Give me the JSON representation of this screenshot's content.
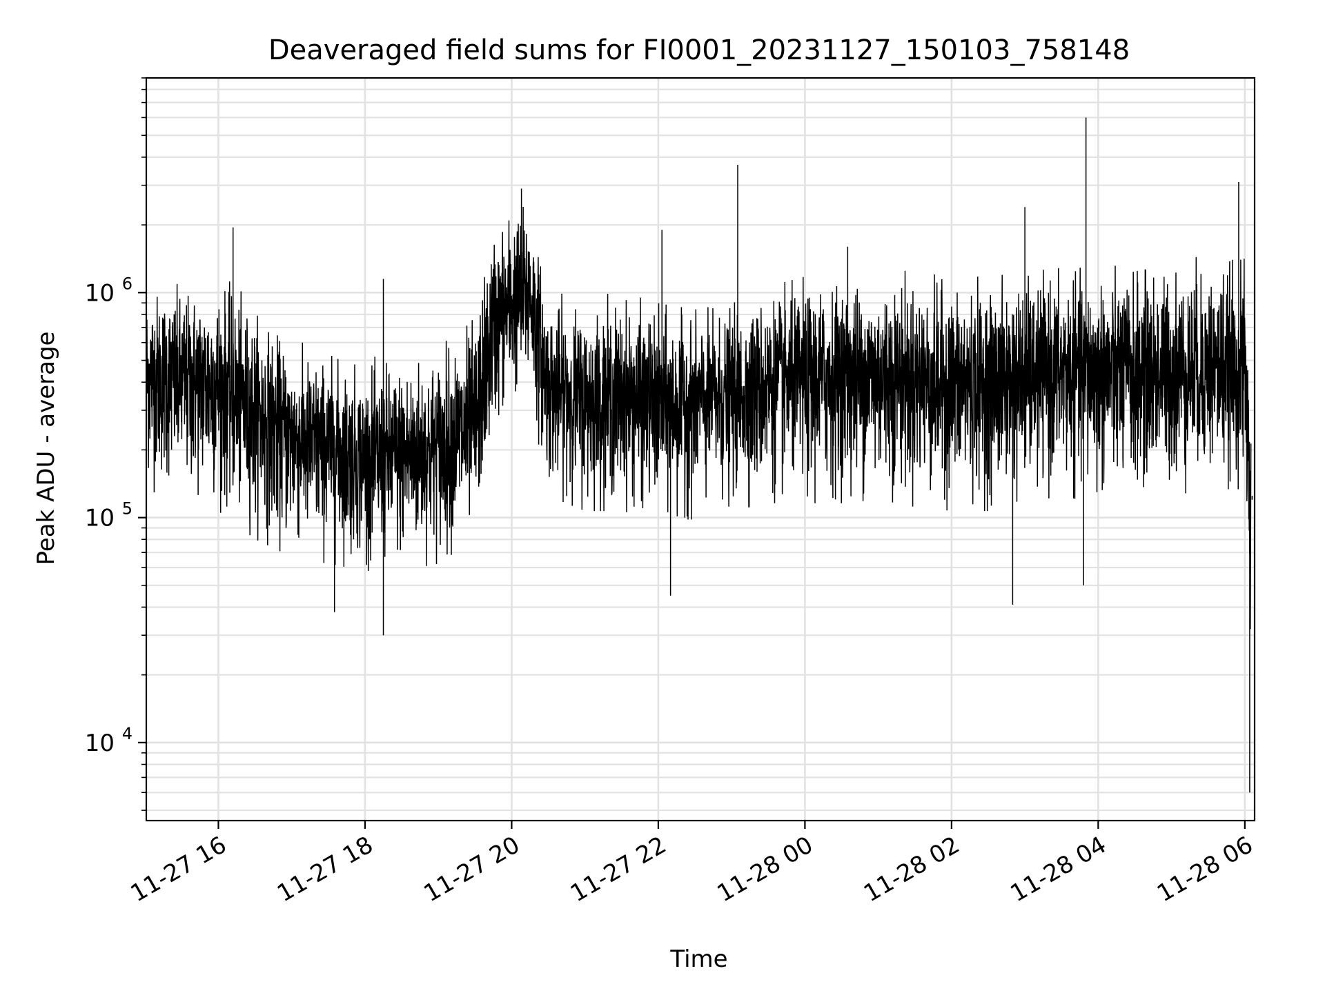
{
  "chart_data": {
    "type": "line",
    "title": "Deaveraged field sums for FI0001_20231127_150103_758148",
    "xlabel": "Time",
    "ylabel": "Peak ADU - average",
    "x_range": [
      "2023-11-27 15:01",
      "2023-11-28 06:08"
    ],
    "ylim": [
      4500,
      9000000
    ],
    "yscale": "log",
    "grid": true,
    "legend": "none",
    "line_color": "#000000",
    "x_ticks": [
      {
        "value": "2023-11-27 16:00",
        "label": "11-27 16"
      },
      {
        "value": "2023-11-27 18:00",
        "label": "11-27 18"
      },
      {
        "value": "2023-11-27 20:00",
        "label": "11-27 20"
      },
      {
        "value": "2023-11-27 22:00",
        "label": "11-27 22"
      },
      {
        "value": "2023-11-28 00:00",
        "label": "11-28 00"
      },
      {
        "value": "2023-11-28 02:00",
        "label": "11-28 02"
      },
      {
        "value": "2023-11-28 04:00",
        "label": "11-28 04"
      },
      {
        "value": "2023-11-28 06:00",
        "label": "11-28 06"
      }
    ],
    "y_ticks": [
      {
        "value": 10000,
        "base": "10",
        "exp": "4"
      },
      {
        "value": 100000,
        "base": "10",
        "exp": "5"
      },
      {
        "value": 1000000,
        "base": "10",
        "exp": "6"
      }
    ],
    "series": [
      {
        "envelope": {
          "x": [
            "2023-11-27 15:01",
            "2023-11-27 15:30",
            "2023-11-27 16:00",
            "2023-11-27 16:30",
            "2023-11-27 17:00",
            "2023-11-27 17:30",
            "2023-11-27 18:00",
            "2023-11-27 18:30",
            "2023-11-27 19:00",
            "2023-11-27 19:30",
            "2023-11-27 19:45",
            "2023-11-27 20:00",
            "2023-11-27 20:15",
            "2023-11-27 20:30",
            "2023-11-27 21:00",
            "2023-11-27 21:30",
            "2023-11-27 22:00",
            "2023-11-27 22:30",
            "2023-11-27 23:00",
            "2023-11-27 23:30",
            "2023-11-28 00:00",
            "2023-11-28 00:30",
            "2023-11-28 01:00",
            "2023-11-28 01:30",
            "2023-11-28 02:00",
            "2023-11-28 02:30",
            "2023-11-28 03:00",
            "2023-11-28 03:30",
            "2023-11-28 04:00",
            "2023-11-28 04:30",
            "2023-11-28 05:00",
            "2023-11-28 05:30",
            "2023-11-28 06:00",
            "2023-11-28 06:05"
          ],
          "center": [
            430000,
            420000,
            400000,
            300000,
            230000,
            210000,
            180000,
            190000,
            200000,
            250000,
            700000,
            900000,
            1000000,
            380000,
            330000,
            340000,
            320000,
            340000,
            360000,
            400000,
            420000,
            430000,
            440000,
            420000,
            400000,
            410000,
            440000,
            460000,
            460000,
            450000,
            460000,
            470000,
            450000,
            120000
          ],
          "high": [
            1100000,
            1000000,
            1100000,
            800000,
            550000,
            500000,
            450000,
            500000,
            550000,
            750000,
            1900000,
            2300000,
            2500000,
            900000,
            850000,
            900000,
            800000,
            750000,
            800000,
            950000,
            1050000,
            1100000,
            1150000,
            1100000,
            1050000,
            1050000,
            1100000,
            1150000,
            1150000,
            1200000,
            1250000,
            1300000,
            1300000,
            300000
          ],
          "low": [
            150000,
            130000,
            120000,
            90000,
            75000,
            70000,
            65000,
            65000,
            70000,
            90000,
            250000,
            350000,
            380000,
            140000,
            120000,
            120000,
            110000,
            110000,
            120000,
            130000,
            130000,
            130000,
            135000,
            125000,
            120000,
            120000,
            130000,
            140000,
            130000,
            130000,
            140000,
            150000,
            150000,
            20000
          ]
        },
        "spikes": [
          {
            "x": "2023-11-27 16:12",
            "y": 1950000
          },
          {
            "x": "2023-11-27 17:35",
            "y": 38000
          },
          {
            "x": "2023-11-27 18:15",
            "y": 30000
          },
          {
            "x": "2023-11-27 18:15",
            "y": 1150000
          },
          {
            "x": "2023-11-27 20:08",
            "y": 2900000
          },
          {
            "x": "2023-11-27 22:03",
            "y": 1900000
          },
          {
            "x": "2023-11-27 22:10",
            "y": 45000
          },
          {
            "x": "2023-11-27 23:05",
            "y": 3700000
          },
          {
            "x": "2023-11-28 00:35",
            "y": 1600000
          },
          {
            "x": "2023-11-28 02:50",
            "y": 41000
          },
          {
            "x": "2023-11-28 03:00",
            "y": 2400000
          },
          {
            "x": "2023-11-28 03:50",
            "y": 6000000
          },
          {
            "x": "2023-11-28 03:48",
            "y": 50000
          },
          {
            "x": "2023-11-28 05:55",
            "y": 3100000
          },
          {
            "x": "2023-11-28 06:04",
            "y": 6000
          },
          {
            "x": "2023-11-28 06:06",
            "y": 125000
          }
        ]
      }
    ]
  }
}
